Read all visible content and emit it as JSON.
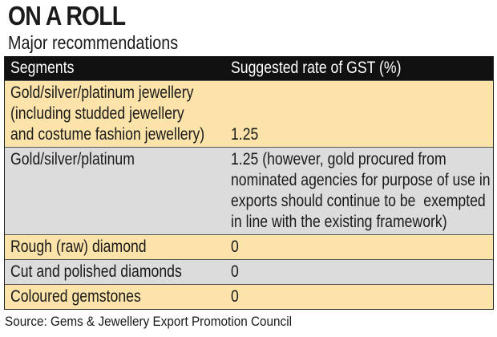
{
  "title": "ON A ROLL",
  "subtitle": "Major recommendations",
  "table": {
    "headers": [
      "Segments",
      "Suggested rate of GST (%)"
    ],
    "rows": [
      {
        "segment": "Gold/silver/platinum jewellery\n(including studded jewellery\nand costume fashion jewellery)",
        "rate": "\n\n1.25"
      },
      {
        "segment": "Gold/silver/platinum",
        "rate": "1.25 (however, gold procured from\nnominated agencies for purpose of use in\nexports should continue to be  exempted\nin line with the existing framework)"
      },
      {
        "segment": "Rough (raw) diamond",
        "rate": "0"
      },
      {
        "segment": "Cut and polished diamonds",
        "rate": "0"
      },
      {
        "segment": "Coloured gemstones",
        "rate": "0"
      }
    ]
  },
  "source": "Source: Gems & Jewellery Export Promotion Council",
  "colors": {
    "header_bg": "#111111",
    "row_cream": "#fbe3a9",
    "row_grey": "#dcdcdc"
  }
}
